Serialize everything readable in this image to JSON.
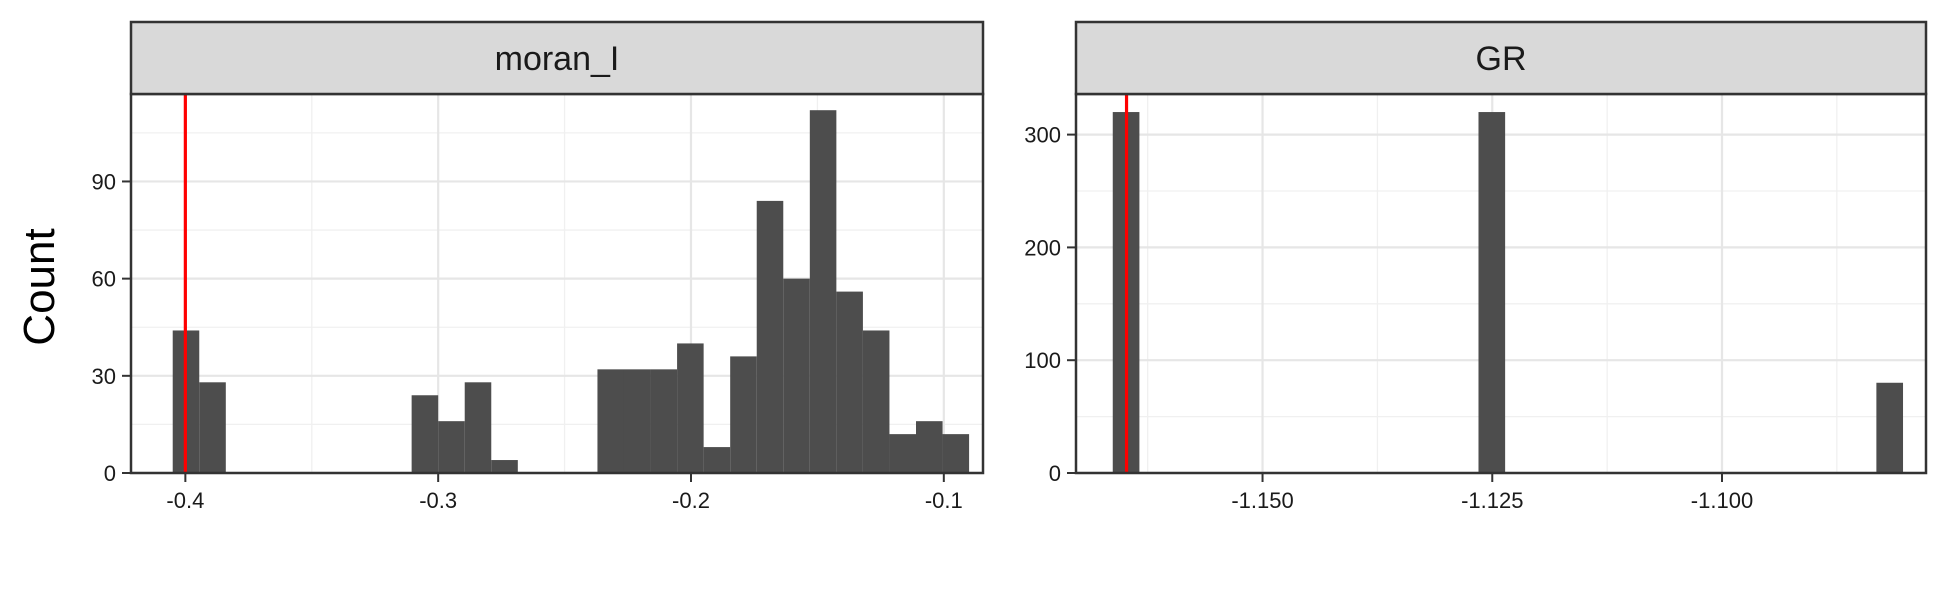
{
  "chart_data": {
    "type": "histogram-facets",
    "ylabel": "Count",
    "grid": true,
    "panels": [
      {
        "strip_label": "moran_I",
        "xlim": [
          -0.4215,
          -0.0845
        ],
        "ylim": [
          0,
          117
        ],
        "x_ticks": [
          -0.4,
          -0.3,
          -0.2,
          -0.1
        ],
        "x_tick_labels": [
          "-0.4",
          "-0.3",
          "-0.2",
          "-0.1"
        ],
        "y_ticks": [
          0,
          30,
          60,
          90
        ],
        "y_tick_labels": [
          "0",
          "30",
          "60",
          "90"
        ],
        "bin_width": 0.0105,
        "bins": [
          {
            "start": -0.405,
            "count": 44
          },
          {
            "start": -0.3945,
            "count": 28
          },
          {
            "start": -0.3105,
            "count": 24
          },
          {
            "start": -0.3,
            "count": 16
          },
          {
            "start": -0.2895,
            "count": 28
          },
          {
            "start": -0.279,
            "count": 4
          },
          {
            "start": -0.237,
            "count": 32
          },
          {
            "start": -0.2265,
            "count": 32
          },
          {
            "start": -0.216,
            "count": 32
          },
          {
            "start": -0.2055,
            "count": 40
          },
          {
            "start": -0.195,
            "count": 8
          },
          {
            "start": -0.1845,
            "count": 36
          },
          {
            "start": -0.174,
            "count": 84
          },
          {
            "start": -0.1635,
            "count": 60
          },
          {
            "start": -0.153,
            "count": 112
          },
          {
            "start": -0.1425,
            "count": 56
          },
          {
            "start": -0.132,
            "count": 44
          },
          {
            "start": -0.1215,
            "count": 12
          },
          {
            "start": -0.111,
            "count": 16
          },
          {
            "start": -0.1005,
            "count": 12
          }
        ],
        "vline": -0.4,
        "vline_color": "#ff0000"
      },
      {
        "strip_label": "GR",
        "xlim": [
          -1.1703,
          -1.0778
        ],
        "ylim": [
          0,
          336
        ],
        "x_ticks": [
          -1.15,
          -1.125,
          -1.1
        ],
        "x_tick_labels": [
          "-1.150",
          "-1.125",
          "-1.100"
        ],
        "y_ticks": [
          0,
          100,
          200,
          300
        ],
        "y_tick_labels": [
          "0",
          "100",
          "200",
          "300"
        ],
        "bin_width": 0.0029,
        "bins": [
          {
            "start": -1.1663,
            "count": 320
          },
          {
            "start": -1.1265,
            "count": 320
          },
          {
            "start": -1.0832,
            "count": 80
          }
        ],
        "vline": -1.1648,
        "vline_color": "#ff0000"
      }
    ]
  }
}
